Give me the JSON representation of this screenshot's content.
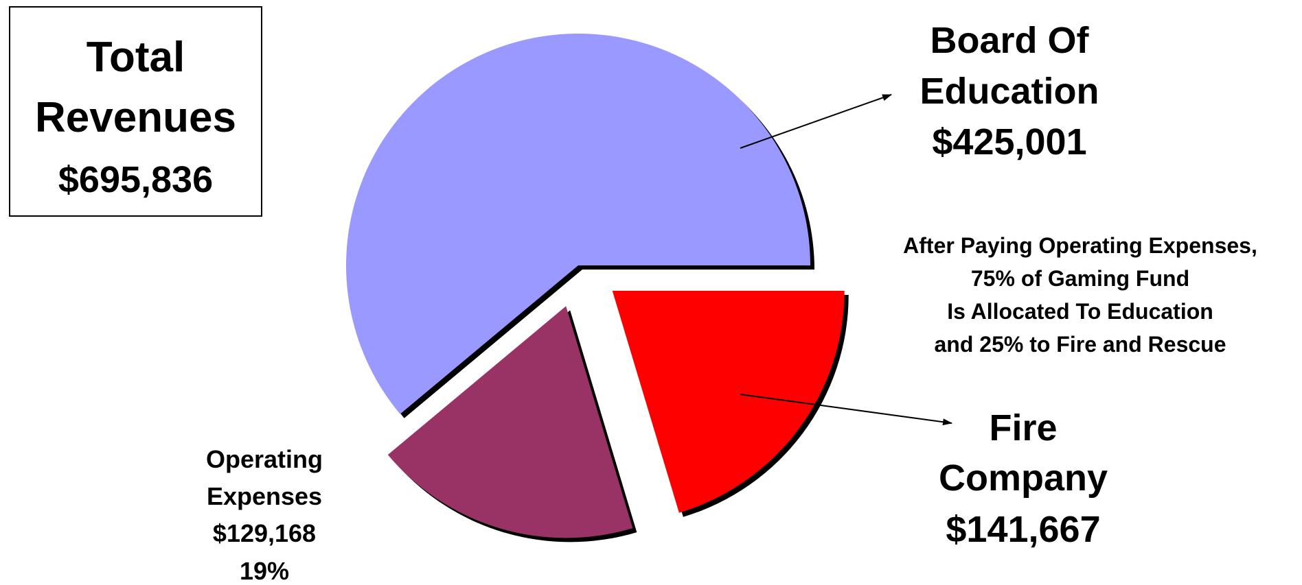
{
  "total_box": {
    "line1": "Total",
    "line2": "Revenues",
    "amount": "$695,836"
  },
  "note": {
    "line1": "After Paying Operating Expenses,",
    "line2": "75% of Gaming Fund",
    "line3": "Is Allocated To Education",
    "line4": "and 25% to Fire and Rescue"
  },
  "labels": {
    "board_of_education": {
      "line1": "Board Of",
      "line2": "Education",
      "amount": "$425,001"
    },
    "fire_company": {
      "line1": "Fire",
      "line2": "Company",
      "amount": "$141,667"
    },
    "operating_expenses": {
      "line1": "Operating",
      "line2": "Expenses",
      "amount": "$129,168",
      "percent": "19%"
    }
  },
  "chart_data": {
    "type": "pie",
    "title": "",
    "slices": [
      {
        "label": "Board Of Education",
        "value": 425001,
        "color": "#9999ff",
        "exploded": false
      },
      {
        "label": "Fire Company",
        "value": 141667,
        "color": "#ff0000",
        "exploded": true
      },
      {
        "label": "Operating Expenses",
        "value": 129168,
        "color": "#993366",
        "exploded": true
      }
    ],
    "total": 695836
  }
}
